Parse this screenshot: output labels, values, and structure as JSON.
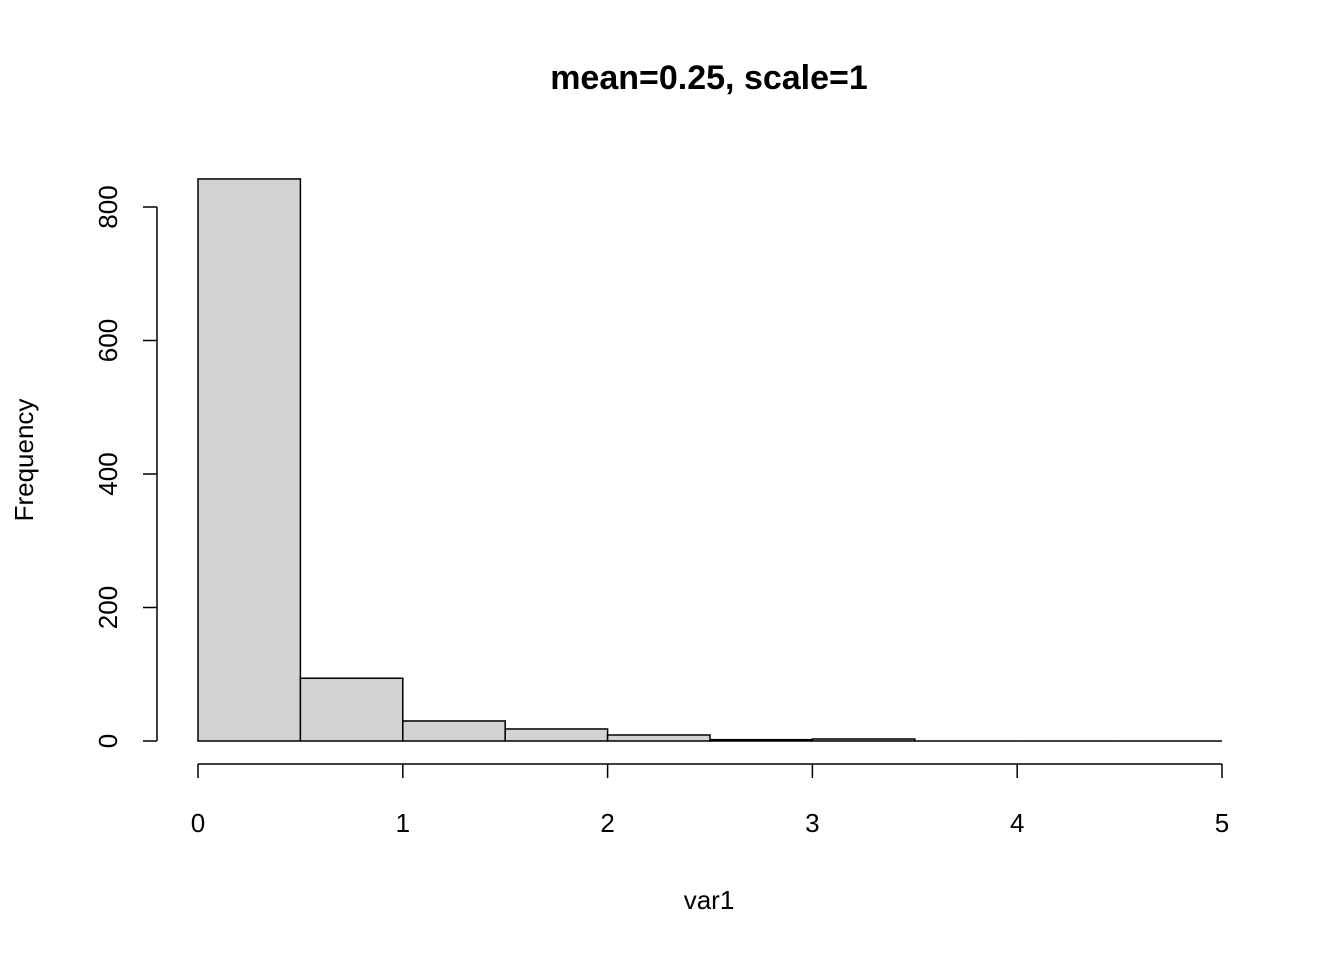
{
  "chart_data": {
    "type": "histogram",
    "title": "mean=0.25, scale=1",
    "x_label": "var1",
    "y_label": "Frequency",
    "bins": [
      0,
      0.5,
      1,
      1.5,
      2,
      2.5,
      3,
      3.5,
      4,
      4.5,
      5
    ],
    "values": [
      842,
      94,
      30,
      18,
      9,
      2,
      3,
      0,
      0,
      0
    ],
    "color": "#d3d3d3",
    "xlim": [
      0,
      5
    ],
    "xticks": [
      0,
      1,
      2,
      3,
      4,
      5
    ],
    "ylim": [
      0,
      800
    ],
    "yticks": [
      0,
      200,
      400,
      600,
      800
    ]
  }
}
